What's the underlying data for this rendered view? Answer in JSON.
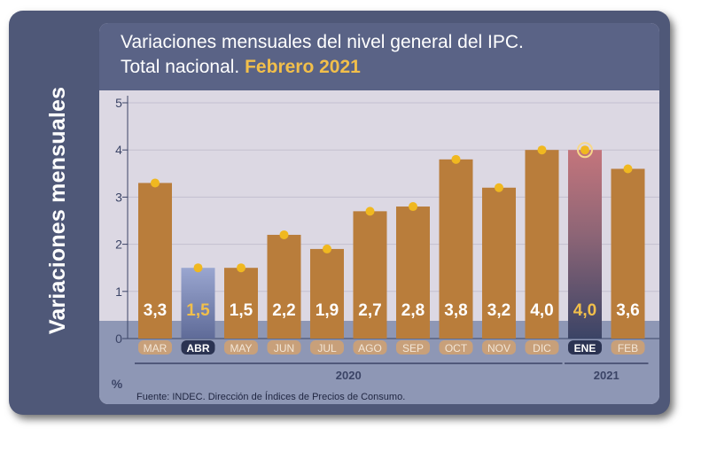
{
  "side_title": "Variaciones mensuales",
  "title_line1": "Variaciones mensuales del nivel general del IPC.",
  "title_line2_prefix": "Total nacional.",
  "title_line2_highlight": "Febrero 2021",
  "source": "Fuente: INDEC. Dirección de Índices de Precios de Consumo.",
  "colors": {
    "frame": "#4f5878",
    "header": "#5a6386",
    "plot_bg": "#dcd8e3",
    "footer": "#8e97b5",
    "bar": "#b97d3b",
    "bar_label": "#ffffff",
    "highlight": "#f2bf4a",
    "marker": "#f0b820",
    "axis": "#3b4466"
  },
  "chart_data": {
    "type": "bar",
    "ylabel": "%",
    "ylim": [
      0,
      5
    ],
    "yticks": [
      "0",
      "1",
      "2",
      "3",
      "4",
      "5"
    ],
    "grid": true,
    "categories": [
      "MAR",
      "ABR",
      "MAY",
      "JUN",
      "JUL",
      "AGO",
      "SEP",
      "OCT",
      "NOV",
      "DIC",
      "ENE",
      "FEB"
    ],
    "values": [
      3.3,
      1.5,
      1.5,
      2.2,
      1.9,
      2.7,
      2.8,
      3.8,
      3.2,
      4.0,
      4.0,
      3.6
    ],
    "value_labels": [
      "3,3",
      "1,5",
      "1,5",
      "2,2",
      "1,9",
      "2,7",
      "2,8",
      "3,8",
      "3,2",
      "4,0",
      "4,0",
      "3,6"
    ],
    "highlighted_categories": [
      "ABR",
      "ENE"
    ],
    "year_groups": [
      {
        "label": "2020",
        "categories": [
          "MAR",
          "ABR",
          "MAY",
          "JUN",
          "JUL",
          "AGO",
          "SEP",
          "OCT",
          "NOV",
          "DIC"
        ]
      },
      {
        "label": "2021",
        "categories": [
          "ENE",
          "FEB"
        ]
      }
    ]
  }
}
